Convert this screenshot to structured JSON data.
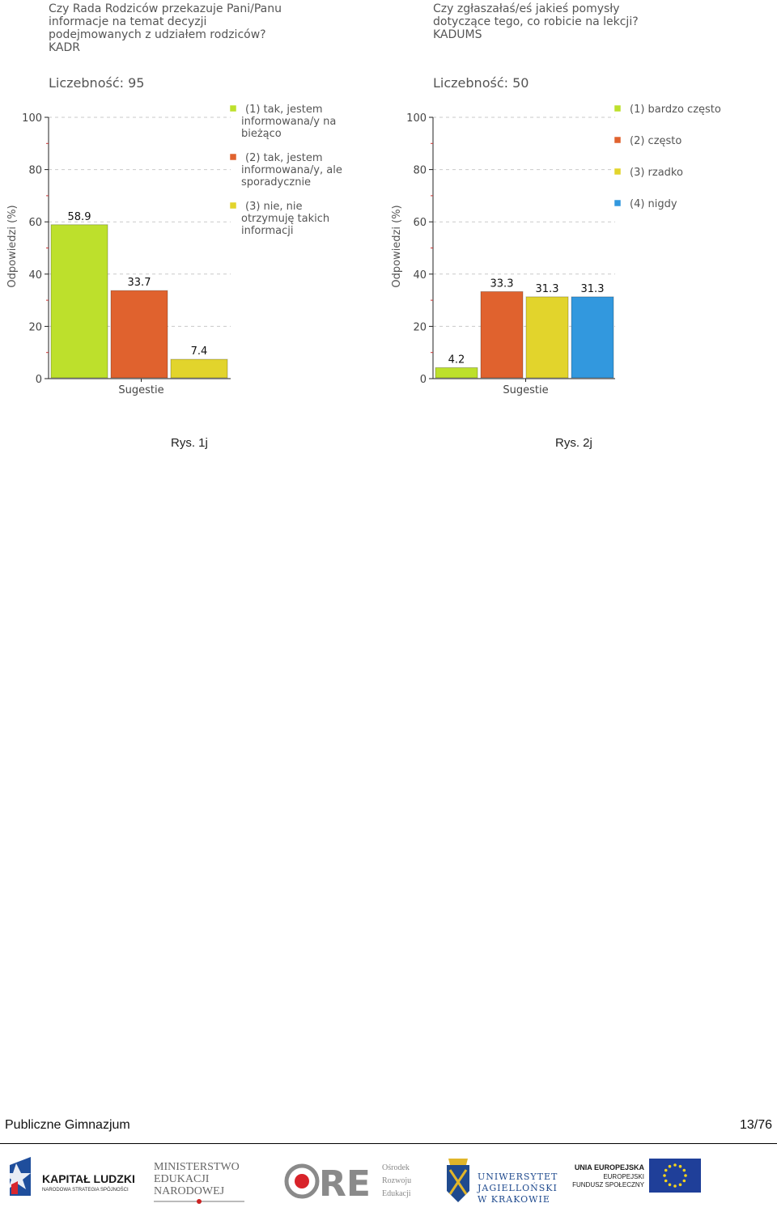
{
  "chart_data": [
    {
      "type": "bar",
      "title": [
        "Czy Rada Rodziców przekazuje Pani/Panu",
        "informacje na temat decyzji",
        "podejmowanych z udziałem rodziców?",
        "KADR"
      ],
      "subtitle": "Liczebność: 95",
      "xlabel": "Sugestie",
      "ylabel": "Odpowiedzi (%)",
      "ylim": [
        0,
        100
      ],
      "yticks": [
        0,
        20,
        40,
        60,
        80,
        100
      ],
      "grid": true,
      "legend_position": "right",
      "categories": [
        "(1) tak, jestem informowana/y na bieżąco",
        "(2) tak, jestem informowana/y, ale sporadycznie",
        "(3) nie, nie otrzymuję takich informacji"
      ],
      "legend_lines": [
        [
          "(1) tak, jestem",
          "informowana/y na",
          "bieżąco"
        ],
        [
          "(2) tak, jestem",
          "informowana/y, ale",
          "sporadycznie"
        ],
        [
          "(3) nie, nie",
          "otrzymuję takich",
          "informacji"
        ]
      ],
      "values": [
        58.9,
        33.7,
        7.4
      ],
      "value_labels": [
        "58.9",
        "33.7",
        "7.4"
      ],
      "colors": [
        "#bde02c",
        "#e0622e",
        "#e2d42c"
      ]
    },
    {
      "type": "bar",
      "title": [
        "Czy zgłaszałaś/eś jakieś pomysły",
        "dotyczące tego, co robicie na lekcji?",
        "KADUMS"
      ],
      "subtitle": "Liczebność: 50",
      "xlabel": "Sugestie",
      "ylabel": "Odpowiedzi (%)",
      "ylim": [
        0,
        100
      ],
      "yticks": [
        0,
        20,
        40,
        60,
        80,
        100
      ],
      "grid": true,
      "legend_position": "right",
      "categories": [
        "(1) bardzo często",
        "(2) często",
        "(3) rzadko",
        "(4) nigdy"
      ],
      "legend_lines": [
        [
          "(1) bardzo często"
        ],
        [
          "(2) często"
        ],
        [
          "(3) rzadko"
        ],
        [
          "(4) nigdy"
        ]
      ],
      "values": [
        4.2,
        33.3,
        31.3,
        31.3
      ],
      "value_labels": [
        "4.2",
        "33.3",
        "31.3",
        "31.3"
      ],
      "colors": [
        "#bde02c",
        "#e0622e",
        "#e2d42c",
        "#3298de"
      ]
    }
  ],
  "captions": [
    "Rys. 1j",
    "Rys. 2j"
  ],
  "footer": {
    "left": "Publiczne Gimnazjum",
    "right": "13/76"
  },
  "logos": {
    "kapital": {
      "line1": "KAPITAŁ LUDZKI",
      "line2": "NARODOWA STRATEGIA SPÓJNOŚCI"
    },
    "ministerstwo": [
      "MINISTERSTWO",
      "EDUKACJI",
      "NARODOWEJ"
    ],
    "ore": {
      "mark": "ORE",
      "lines": [
        "Ośrodek",
        "Rozwoju",
        "Edukacji"
      ]
    },
    "uj": [
      "UNIWERSYTET",
      "JAGIELLOŃSKI",
      "W KRAKOWIE"
    ],
    "ue": [
      "UNIA EUROPEJSKA",
      "EUROPEJSKI",
      "FUNDUSZ SPOŁECZNY"
    ]
  }
}
